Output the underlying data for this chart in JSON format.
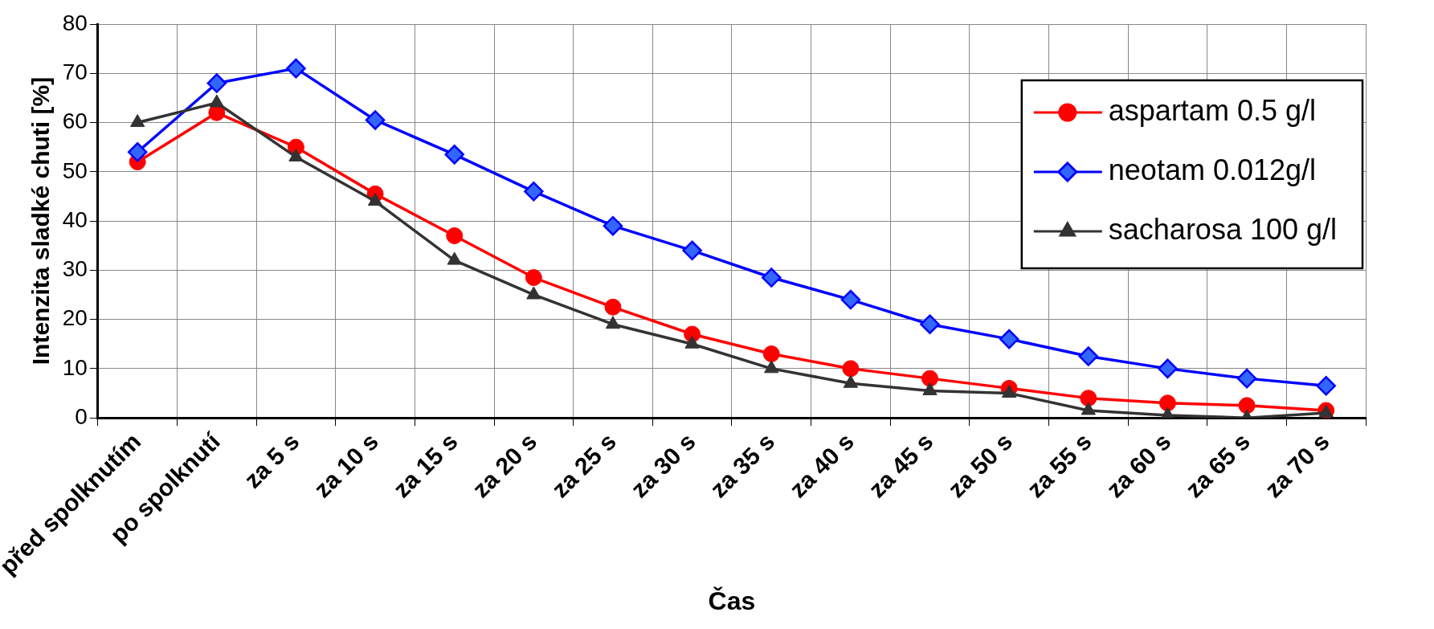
{
  "chart_data": {
    "type": "line",
    "xlabel": "Čas",
    "ylabel": "Intenzita sladké chuti [%]",
    "categories": [
      "před spolknutím",
      "po spolknutí",
      "za 5 s",
      "za 10 s",
      "za 15 s",
      "za 20 s",
      "za 25 s",
      "za 30 s",
      "za 35 s",
      "za 40 s",
      "za 45 s",
      "za 50 s",
      "za 55 s",
      "za 60 s",
      "za 65 s",
      "za 70 s"
    ],
    "series": [
      {
        "name": "aspartam 0.5 g/l",
        "color": "#ff0000",
        "marker": "circle",
        "values": [
          52,
          62,
          55,
          45.5,
          37,
          28.5,
          22.5,
          17,
          13,
          10,
          8,
          6,
          4,
          3,
          2.5,
          1.5
        ]
      },
      {
        "name": "neotam 0.012g/l",
        "color": "#0000ff",
        "marker": "diamond",
        "values": [
          54,
          68,
          71,
          60.5,
          53.5,
          46,
          39,
          34,
          28.5,
          24,
          19,
          16,
          12.5,
          10,
          8,
          6.5
        ]
      },
      {
        "name": "sacharosa 100 g/l",
        "color": "#333333",
        "marker": "triangle",
        "values": [
          60,
          64,
          53,
          44,
          32,
          25,
          19,
          15,
          10,
          7,
          5.5,
          5,
          1.5,
          0.5,
          0,
          1
        ]
      }
    ],
    "ylim": [
      0,
      80
    ],
    "yticks": [
      0,
      10,
      20,
      30,
      40,
      50,
      60,
      70,
      80
    ],
    "grid": true,
    "legend": "top right",
    "line_style": "solid"
  }
}
